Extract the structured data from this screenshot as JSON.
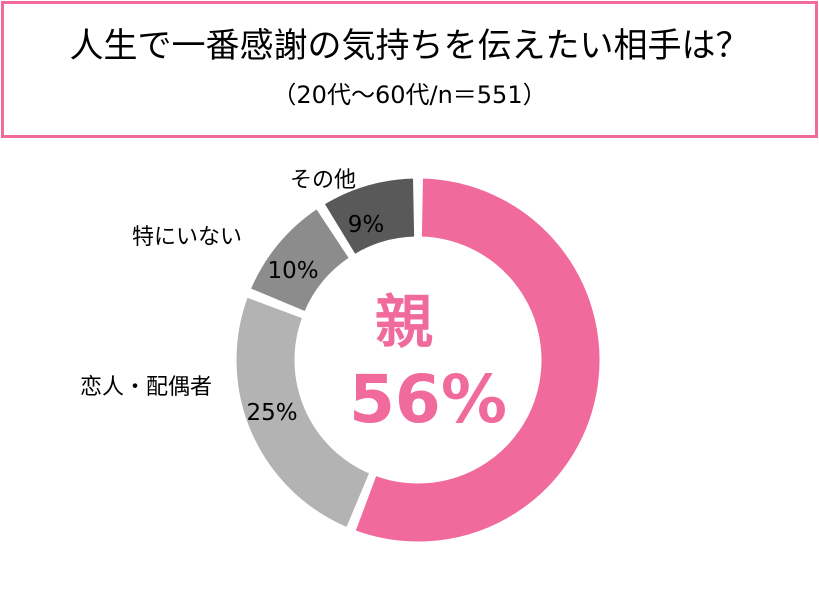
{
  "title": "人生で一番感謝の気持ちを伝えたい相手は？",
  "subtitle": "（20代～60代/n＝551）",
  "colors": {
    "frame": "#f06b9b",
    "accent": "#f06b9b"
  },
  "chart_data": {
    "type": "pie",
    "variant": "donut",
    "slices": [
      {
        "label": "親",
        "value": 56,
        "display": "56%",
        "color": "#f06b9b"
      },
      {
        "label": "恋人・配偶者",
        "value": 25,
        "display": "25%",
        "color": "#b3b3b3"
      },
      {
        "label": "特にいない",
        "value": 10,
        "display": "10%",
        "color": "#8c8c8c"
      },
      {
        "label": "その他",
        "value": 9,
        "display": "9%",
        "color": "#595959"
      }
    ]
  }
}
